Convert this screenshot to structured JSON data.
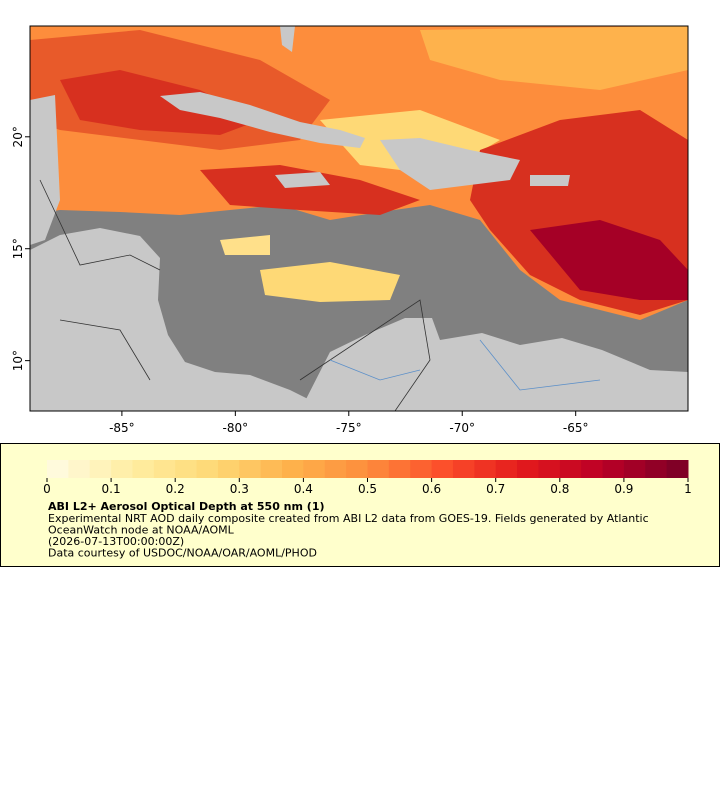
{
  "chart_data": {
    "type": "map",
    "xlim": [
      -89.05,
      -60.05
    ],
    "ylim": [
      7.75,
      24.95
    ],
    "xticks": [
      {
        "value": -85,
        "label": "-85°"
      },
      {
        "value": -80,
        "label": "-80°"
      },
      {
        "value": -75,
        "label": "-75°"
      },
      {
        "value": -70,
        "label": "-70°"
      },
      {
        "value": -65,
        "label": "-65°"
      }
    ],
    "yticks": [
      {
        "value": 10,
        "label": "10°"
      },
      {
        "value": 15,
        "label": "15°"
      },
      {
        "value": 20,
        "label": "20°"
      }
    ],
    "colorbar": {
      "lim": [
        0,
        1
      ],
      "ticks": [
        0,
        0.1,
        0.2,
        0.3,
        0.4,
        0.5,
        0.6,
        0.7,
        0.8,
        0.9,
        1
      ],
      "steps": 30,
      "colors": [
        "#fffadc",
        "#ffeda0",
        "#fed976",
        "#feb24c",
        "#fd8d3c",
        "#fc4e2a",
        "#e31a1c",
        "#bd0026",
        "#800026"
      ]
    },
    "title": "ABI L2+ Aerosol Optical Depth at 550 nm (1)",
    "description": [
      "Experimental NRT AOD daily composite created from ABI L2 data from GOES-19. Fields generated by Atlantic",
      "OceanWatch node at NOAA/AOML",
      "(2026-07-13T00:00:00Z)",
      "Data courtesy of USDOC/NOAA/OAR/AOML/PHOD"
    ]
  }
}
